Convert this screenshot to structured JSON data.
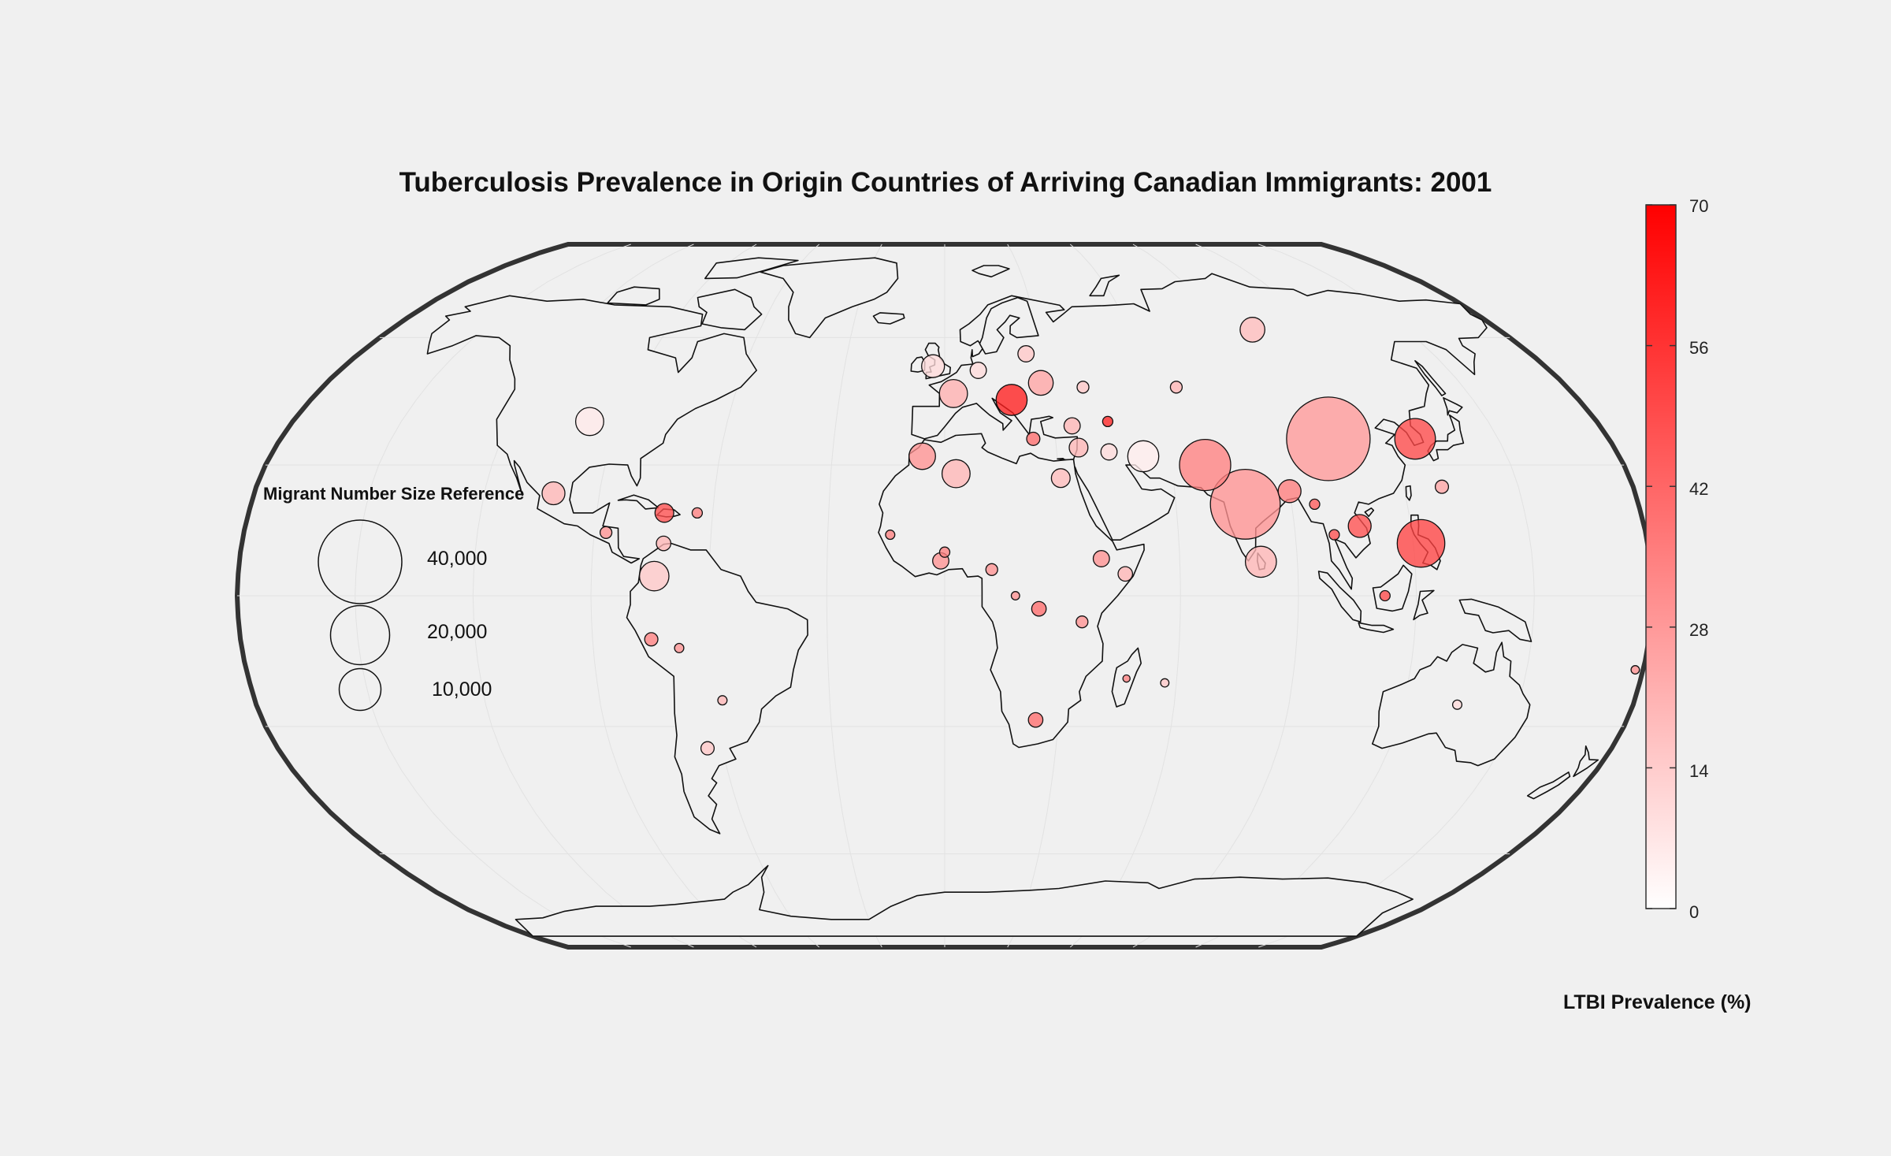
{
  "title": "Tuberculosis Prevalence in Origin Countries of Arriving Canadian Immigrants: 2001",
  "size_legend": {
    "title": "Migrant Number Size Reference",
    "entries": [
      {
        "label": "40,000",
        "value": 40000
      },
      {
        "label": "20,000",
        "value": 20000
      },
      {
        "label": "10,000",
        "value": 10000
      }
    ]
  },
  "colorbar": {
    "label": "LTBI Prevalence (%)",
    "min": 0,
    "max": 70,
    "ticks": [
      "0",
      "14",
      "28",
      "42",
      "56",
      "70"
    ],
    "low_color": "#ffffff",
    "high_color": "#ff0000"
  },
  "chart_data": {
    "type": "scatter",
    "projection": "Robinson",
    "year": "2001",
    "points": [
      {
        "lon": 78,
        "lat": 21,
        "prevalence": 30,
        "migrants": 28000
      },
      {
        "lon": 104,
        "lat": 36,
        "prevalence": 28,
        "migrants": 40000
      },
      {
        "lon": 122,
        "lat": 12,
        "prevalence": 52,
        "migrants": 13000
      },
      {
        "lon": 69,
        "lat": 30,
        "prevalence": 35,
        "migrants": 15000
      },
      {
        "lon": 53,
        "lat": 32,
        "prevalence": 5,
        "migrants": 5500
      },
      {
        "lon": 127.5,
        "lat": 36,
        "prevalence": 50,
        "migrants": 9500
      },
      {
        "lon": 19,
        "lat": 45,
        "prevalence": 62,
        "migrants": 5500
      },
      {
        "lon": 80.7,
        "lat": 7.8,
        "prevalence": 20,
        "migrants": 5500
      },
      {
        "lon": 90,
        "lat": 24,
        "prevalence": 36,
        "migrants": 3000
      },
      {
        "lon": 100,
        "lat": 62,
        "prevalence": 18,
        "migrants": 3500
      },
      {
        "lon": -98,
        "lat": 40,
        "prevalence": 6,
        "migrants": 4500
      },
      {
        "lon": 2.5,
        "lat": 46.5,
        "prevalence": 22,
        "migrants": 4500
      },
      {
        "lon": 28,
        "lat": 49,
        "prevalence": 25,
        "migrants": 3500
      },
      {
        "lon": -3.5,
        "lat": 53,
        "prevalence": 10,
        "migrants": 3000
      },
      {
        "lon": 3,
        "lat": 28,
        "prevalence": 20,
        "migrants": 4500
      },
      {
        "lon": -6,
        "lat": 32,
        "prevalence": 30,
        "migrants": 4000
      },
      {
        "lon": -74,
        "lat": 4.5,
        "prevalence": 15,
        "migrants": 5000
      },
      {
        "lon": -102,
        "lat": 23.5,
        "prevalence": 20,
        "migrants": 3000
      },
      {
        "lon": 106.8,
        "lat": 16,
        "prevalence": 48,
        "migrants": 3000
      },
      {
        "lon": -72.5,
        "lat": 19,
        "prevalence": 48,
        "migrants": 2000
      },
      {
        "lon": 30.5,
        "lat": 27,
        "prevalence": 18,
        "migrants": 2000
      },
      {
        "lon": 36,
        "lat": 34,
        "prevalence": 20,
        "migrants": 2000
      },
      {
        "lon": 44,
        "lat": 33,
        "prevalence": 10,
        "migrants": 1500
      },
      {
        "lon": 35,
        "lat": 39,
        "prevalence": 20,
        "migrants": 1500
      },
      {
        "lon": 40,
        "lat": 8.5,
        "prevalence": 30,
        "migrants": 1500
      },
      {
        "lon": -1,
        "lat": 8,
        "prevalence": 30,
        "migrants": 1500
      },
      {
        "lon": 46,
        "lat": 5,
        "prevalence": 20,
        "migrants": 1200
      },
      {
        "lon": 24,
        "lat": -3,
        "prevalence": 40,
        "migrants": 1200
      },
      {
        "lon": 24,
        "lat": -28.5,
        "prevalence": 40,
        "migrants": 1200
      },
      {
        "lon": -75,
        "lat": -10,
        "prevalence": 35,
        "migrants": 1000
      },
      {
        "lon": -64,
        "lat": -35,
        "prevalence": 15,
        "migrants": 1000
      },
      {
        "lon": 25,
        "lat": 56,
        "prevalence": 15,
        "migrants": 1500
      },
      {
        "lon": 10,
        "lat": 52,
        "prevalence": 10,
        "migrants": 1500
      },
      {
        "lon": 130,
        "lat": 25,
        "prevalence": 25,
        "migrants": 1000
      },
      {
        "lon": 24,
        "lat": 36,
        "prevalence": 40,
        "migrants": 1000
      },
      {
        "lon": -72,
        "lat": 12,
        "prevalence": 20,
        "migrants": 1200
      },
      {
        "lon": -87,
        "lat": 14.5,
        "prevalence": 30,
        "migrants": 800
      },
      {
        "lon": -68,
        "lat": -12,
        "prevalence": 30,
        "migrants": 500
      },
      {
        "lon": -58,
        "lat": -24,
        "prevalence": 20,
        "migrants": 500
      },
      {
        "lon": 112,
        "lat": 0,
        "prevalence": 50,
        "migrants": 600
      },
      {
        "lon": 134,
        "lat": -25,
        "prevalence": 10,
        "migrants": 500
      },
      {
        "lon": 57,
        "lat": -20,
        "prevalence": 15,
        "migrants": 400
      },
      {
        "lon": 178,
        "lat": -17,
        "prevalence": 30,
        "migrants": 400
      },
      {
        "lon": 45,
        "lat": 40,
        "prevalence": 60,
        "migrants": 600
      },
      {
        "lon": 40,
        "lat": 48,
        "prevalence": 15,
        "migrants": 800
      },
      {
        "lon": 67,
        "lat": 48,
        "prevalence": 20,
        "migrants": 800
      },
      {
        "lon": 96,
        "lat": 21,
        "prevalence": 45,
        "migrants": 600
      },
      {
        "lon": 100,
        "lat": 14,
        "prevalence": 48,
        "migrants": 600
      },
      {
        "lon": 0,
        "lat": 10,
        "prevalence": 35,
        "migrants": 600
      },
      {
        "lon": -14,
        "lat": 14,
        "prevalence": 35,
        "migrants": 500
      },
      {
        "lon": 12,
        "lat": 6,
        "prevalence": 30,
        "migrants": 800
      },
      {
        "lon": 35,
        "lat": -6,
        "prevalence": 30,
        "migrants": 800
      },
      {
        "lon": 18,
        "lat": 0,
        "prevalence": 30,
        "migrants": 400
      },
      {
        "lon": 47,
        "lat": -19,
        "prevalence": 35,
        "migrants": 300
      },
      {
        "lon": -64,
        "lat": 19,
        "prevalence": 35,
        "migrants": 600
      }
    ]
  }
}
